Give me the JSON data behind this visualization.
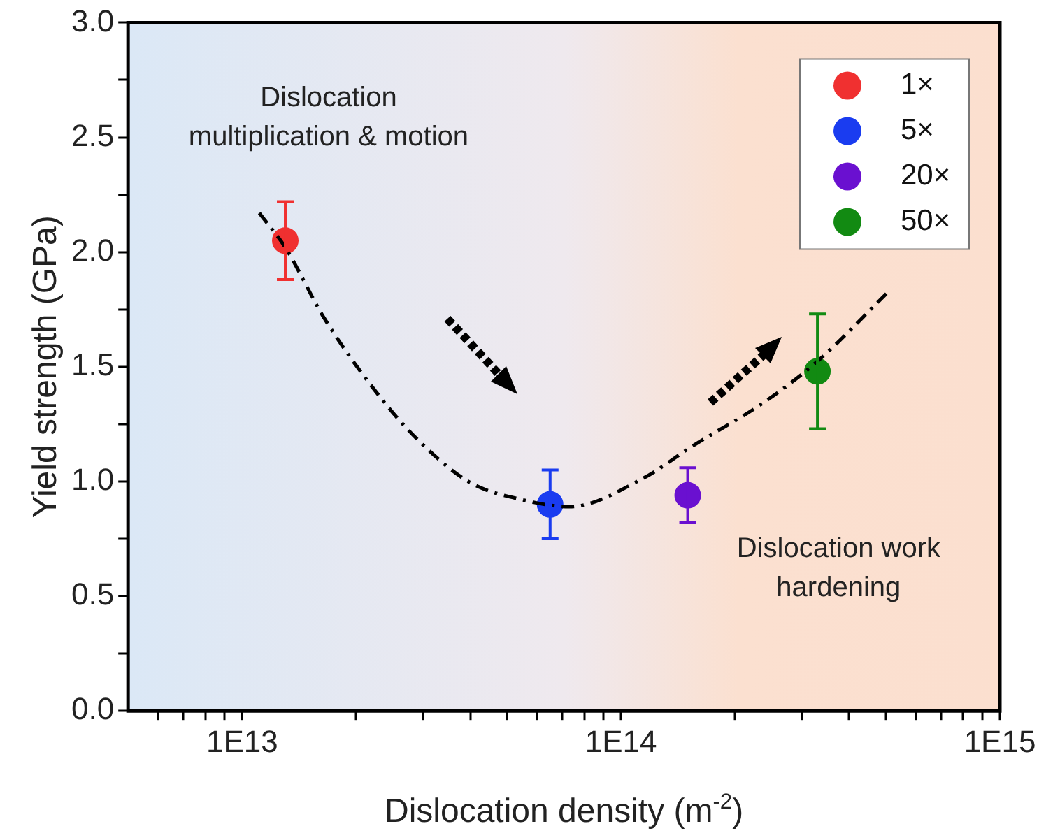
{
  "chart_data": {
    "type": "scatter",
    "xlabel": "Dislocation density (m$^{-2}$)",
    "ylabel": "Yield strength (GPa)",
    "annotations": [
      "Dislocation multiplication & motion",
      "Dislocation work hardening"
    ],
    "log": "x",
    "xlim": [
      5000000000000.0,
      1000000000000000.0
    ],
    "xticks": [
      {
        "value": 6000000000000.0,
        "label": null
      },
      {
        "value": 7000000000000.0,
        "label": null
      },
      {
        "value": 8000000000000.0,
        "label": null
      },
      {
        "value": 9000000000000.0,
        "label": null
      },
      {
        "value": 10000000000000.0,
        "label": "1E13"
      },
      {
        "value": 20000000000000.0,
        "label": null
      },
      {
        "value": 30000000000000.0,
        "label": null
      },
      {
        "value": 40000000000000.0,
        "label": null
      },
      {
        "value": 50000000000000.0,
        "label": null
      },
      {
        "value": 60000000000000.0,
        "label": null
      },
      {
        "value": 70000000000000.0,
        "label": null
      },
      {
        "value": 80000000000000.0,
        "label": null
      },
      {
        "value": 90000000000000.0,
        "label": null
      },
      {
        "value": 100000000000000.0,
        "label": "1E14"
      },
      {
        "value": 200000000000000.0,
        "label": null
      },
      {
        "value": 300000000000000.0,
        "label": null
      },
      {
        "value": 400000000000000.0,
        "label": null
      },
      {
        "value": 500000000000000.0,
        "label": null
      },
      {
        "value": 600000000000000.0,
        "label": null
      },
      {
        "value": 700000000000000.0,
        "label": null
      },
      {
        "value": 800000000000000.0,
        "label": null
      },
      {
        "value": 900000000000000.0,
        "label": null
      },
      {
        "value": 1000000000000000.0,
        "label": "1E15"
      }
    ],
    "ylim": [
      0,
      3
    ],
    "yticks": [
      {
        "value": 0,
        "label": "0.0"
      },
      {
        "value": 0.25,
        "label": null
      },
      {
        "value": 0.5,
        "label": "0.5"
      },
      {
        "value": 0.75,
        "label": null
      },
      {
        "value": 1,
        "label": "1.0"
      },
      {
        "value": 1.25,
        "label": null
      },
      {
        "value": 1.5,
        "label": "1.5"
      },
      {
        "value": 1.75,
        "label": null
      },
      {
        "value": 2,
        "label": "2.0"
      },
      {
        "value": 2.25,
        "label": null
      },
      {
        "value": 2.5,
        "label": "2.5"
      },
      {
        "value": 2.75,
        "label": null
      },
      {
        "value": 3,
        "label": "3.0"
      }
    ],
    "marker": "circle",
    "legend": "top right",
    "series": [
      {
        "type": "line",
        "line_style": "dashed",
        "marker": "none",
        "color": "#000000",
        "x": [
          11100000000000.0,
          13000000000000.0,
          16500000000000.0,
          23600000000000.0,
          30000000000000.0,
          40000000000000.0,
          55000000000000.0,
          73000000000000.0,
          115000000000000.0,
          153000000000000.0,
          236000000000000.0,
          328000000000000.0,
          510000000000000.0
        ],
        "values": [
          2.17,
          2.02,
          1.71,
          1.35,
          1.16,
          0.995,
          0.92,
          0.89,
          1.016,
          1.15,
          1.34,
          1.52,
          1.83
        ]
      },
      {
        "name": "1×",
        "color": "#f03030",
        "x": [
          13000000000000.0
        ],
        "values": [
          2.05
        ],
        "errors": [
          0.17
        ]
      },
      {
        "name": "5×",
        "color": "#1a3cf0",
        "x": [
          65000000000000.0
        ],
        "values": [
          0.9
        ],
        "errors": [
          0.15
        ]
      },
      {
        "name": "20×",
        "color": "#6a10d0",
        "x": [
          150000000000000.0
        ],
        "values": [
          0.94
        ],
        "errors": [
          0.12
        ]
      },
      {
        "name": "50×",
        "color": "#128a12",
        "x": [
          330000000000000.0
        ],
        "values": [
          1.48
        ],
        "errors": [
          0.25
        ]
      }
    ]
  }
}
